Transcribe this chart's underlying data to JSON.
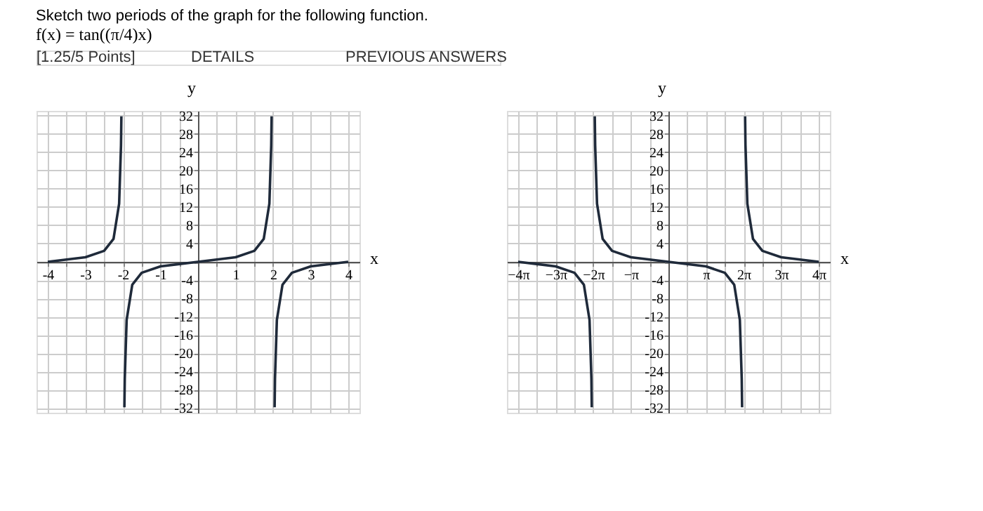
{
  "chart_data": [
    {
      "type": "line",
      "title": "Sketch two periods of the graph for the following function.",
      "subtitle": "f(x) = tan((π/4)x)",
      "annotations": [
        "[1.25/5 Points]",
        "DETAILS",
        "PREVIOUS ANSWERS"
      ],
      "xlabel": "x",
      "ylabel": "y",
      "series": [
        {
          "color": "#1f2a3a",
          "x": [
            -4,
            -3,
            -2.5,
            -2.25,
            -2.1,
            -2.05,
            -2.04
          ],
          "values": [
            0,
            1,
            2.4,
            5,
            12.7,
            25.5,
            31.8
          ]
        },
        {
          "color": "#1f2a3a",
          "x": [
            -1.96,
            -1.95,
            -1.9,
            -1.75,
            -1.5,
            -1,
            0,
            1,
            1.5,
            1.75,
            1.9,
            1.95,
            1.96
          ],
          "values": [
            -31.8,
            -25.5,
            -12.7,
            -5,
            -2.4,
            -1,
            0,
            1,
            2.4,
            5,
            12.7,
            25.5,
            31.8
          ]
        },
        {
          "color": "#1f2a3a",
          "x": [
            2.04,
            2.05,
            2.1,
            2.25,
            2.5,
            3,
            4
          ],
          "values": [
            -31.8,
            -25.5,
            -12.7,
            -5,
            -2.4,
            -1,
            0
          ]
        }
      ],
      "xlim": [
        -4.3,
        4.3
      ],
      "ylim": [
        -33,
        33
      ],
      "xticks": [
        -4,
        {
          "value": -3.5,
          "label": null
        },
        -3,
        {
          "value": -2.5,
          "label": null
        },
        -2,
        {
          "value": -1.5,
          "label": null
        },
        -1,
        {
          "value": -0.5,
          "label": null
        },
        {
          "value": 0,
          "label": null
        },
        {
          "value": 0.5,
          "label": null
        },
        1,
        {
          "value": 1.5,
          "label": null
        },
        2,
        {
          "value": 2.5,
          "label": null
        },
        3,
        {
          "value": 3.5,
          "label": null
        },
        4
      ],
      "yticks": [
        -32,
        -28,
        -24,
        -20,
        -16,
        -12,
        -8,
        -4,
        {
          "value": 0,
          "label": null
        },
        4,
        8,
        12,
        16,
        20,
        24,
        28,
        32
      ],
      "grid": true,
      "marker": "none",
      "line_style": "solid"
    },
    {
      "type": "line",
      "xlabel": "x",
      "ylabel": "y",
      "series": [
        {
          "color": "#1f2a3a",
          "x": [
            -12.566,
            -9.425,
            -7.854,
            -7.069,
            -6.597,
            -6.44,
            -6.409
          ],
          "values": [
            0,
            -1,
            -2.4,
            -5,
            -12.7,
            -25.5,
            -31.8
          ]
        },
        {
          "color": "#1f2a3a",
          "x": [
            -6.158,
            -6.126,
            -5.969,
            -5.498,
            -4.712,
            -3.142,
            0,
            3.142,
            4.712,
            5.498,
            5.969,
            6.126,
            6.158
          ],
          "values": [
            31.8,
            25.5,
            12.7,
            5,
            2.4,
            1,
            0,
            -1,
            -2.4,
            -5,
            -12.7,
            -25.5,
            -31.8
          ]
        },
        {
          "color": "#1f2a3a",
          "x": [
            6.409,
            6.44,
            6.597,
            7.069,
            7.854,
            9.425,
            12.566
          ],
          "values": [
            31.8,
            25.5,
            12.7,
            5,
            2.4,
            1,
            0
          ]
        }
      ],
      "xlim": [
        -13.5,
        13.5
      ],
      "ylim": [
        -33,
        33
      ],
      "xticks": [
        {
          "value": -12.566,
          "label": "−4π"
        },
        {
          "value": -10.996,
          "label": null
        },
        {
          "value": -9.425,
          "label": "−3π"
        },
        {
          "value": -7.854,
          "label": null
        },
        {
          "value": -6.283,
          "label": "−2π"
        },
        {
          "value": -4.712,
          "label": null
        },
        {
          "value": -3.142,
          "label": "−π"
        },
        {
          "value": -1.571,
          "label": null
        },
        {
          "value": 0,
          "label": null
        },
        {
          "value": 1.571,
          "label": null
        },
        {
          "value": 3.142,
          "label": "π"
        },
        {
          "value": 4.712,
          "label": null
        },
        {
          "value": 6.283,
          "label": "2π"
        },
        {
          "value": 7.854,
          "label": null
        },
        {
          "value": 9.425,
          "label": "3π"
        },
        {
          "value": 10.996,
          "label": null
        },
        {
          "value": 12.566,
          "label": "4π"
        }
      ],
      "yticks": [
        -32,
        -28,
        -24,
        -20,
        -16,
        -12,
        -8,
        -4,
        {
          "value": 0,
          "label": null
        },
        4,
        8,
        12,
        16,
        20,
        24,
        28,
        32
      ],
      "grid": true,
      "marker": "none",
      "line_style": "solid"
    }
  ]
}
